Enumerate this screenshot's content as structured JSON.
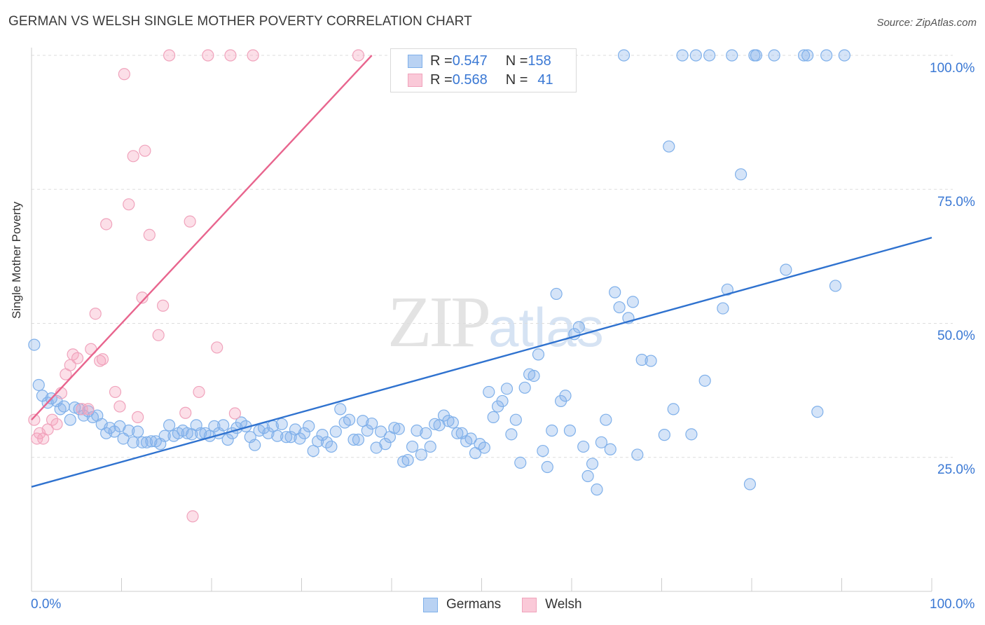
{
  "title": "GERMAN VS WELSH SINGLE MOTHER POVERTY CORRELATION CHART",
  "source": "Source: ZipAtlas.com",
  "watermark": {
    "zip": "ZIP",
    "atlas": "atlas"
  },
  "colors": {
    "german_fill": "rgba(134,177,235,0.35)",
    "german_stroke": "#7fb0ea",
    "german_line": "#2f72cf",
    "welsh_fill": "rgba(245,164,190,0.35)",
    "welsh_stroke": "#f0a3bc",
    "welsh_line": "#e8658e",
    "axis_text": "#3a78d4",
    "grid": "#dddddd"
  },
  "legend": {
    "rows": [
      {
        "r_label": "R = ",
        "r_value": "0.547",
        "n_label": "N = ",
        "n_value": "158"
      },
      {
        "r_label": "R = ",
        "r_value": "0.568",
        "n_label": "N = ",
        "n_value": "41"
      }
    ],
    "bottom": [
      "Germans",
      "Welsh"
    ]
  },
  "chart_data": {
    "type": "scatter",
    "title": "GERMAN VS WELSH SINGLE MOTHER POVERTY CORRELATION CHART",
    "xlabel": "",
    "ylabel": "Single Mother Poverty",
    "xlim": [
      0,
      100
    ],
    "ylim": [
      0,
      103
    ],
    "x_tick_labels": [
      "0.0%",
      "100.0%"
    ],
    "y_tick_labels": [
      "25.0%",
      "50.0%",
      "75.0%",
      "100.0%"
    ],
    "grid": "horizontal dashed",
    "legend_position": "top-center",
    "series": [
      {
        "name": "Germans",
        "r": 0.547,
        "n": 158,
        "trend": {
          "x": [
            0,
            100
          ],
          "y": [
            19.5,
            66.0
          ]
        },
        "points": [
          [
            0.3,
            46
          ],
          [
            0.8,
            38.5
          ],
          [
            1.2,
            36.5
          ],
          [
            1.8,
            35.2
          ],
          [
            2.2,
            36
          ],
          [
            2.8,
            35.5
          ],
          [
            3.2,
            34
          ],
          [
            3.6,
            34.5
          ],
          [
            4.3,
            32
          ],
          [
            4.8,
            34.3
          ],
          [
            5.3,
            34
          ],
          [
            5.8,
            32.8
          ],
          [
            6.3,
            33.6
          ],
          [
            6.8,
            32.5
          ],
          [
            7.3,
            32.8
          ],
          [
            7.8,
            31.2
          ],
          [
            8.3,
            29.5
          ],
          [
            8.7,
            30.5
          ],
          [
            9.2,
            29.8
          ],
          [
            9.8,
            30.8
          ],
          [
            10.2,
            28.5
          ],
          [
            10.8,
            30
          ],
          [
            11.3,
            27.8
          ],
          [
            11.8,
            29.8
          ],
          [
            12.3,
            27.8
          ],
          [
            12.8,
            27.8
          ],
          [
            13.3,
            28
          ],
          [
            13.8,
            28
          ],
          [
            14.3,
            27.5
          ],
          [
            14.8,
            29
          ],
          [
            15.3,
            31
          ],
          [
            15.8,
            29
          ],
          [
            16.3,
            29.5
          ],
          [
            16.8,
            30
          ],
          [
            17.3,
            29.5
          ],
          [
            17.8,
            29.3
          ],
          [
            18.3,
            31
          ],
          [
            18.8,
            29.5
          ],
          [
            19.3,
            29.5
          ],
          [
            19.8,
            29
          ],
          [
            20.3,
            30.8
          ],
          [
            20.8,
            29.5
          ],
          [
            21.3,
            31
          ],
          [
            21.8,
            28.3
          ],
          [
            22.3,
            29.5
          ],
          [
            22.8,
            30.5
          ],
          [
            23.3,
            31.5
          ],
          [
            23.8,
            30.8
          ],
          [
            24.3,
            28.8
          ],
          [
            24.8,
            27.3
          ],
          [
            25.3,
            30
          ],
          [
            25.8,
            30.5
          ],
          [
            26.3,
            29.5
          ],
          [
            26.8,
            30.8
          ],
          [
            27.3,
            29
          ],
          [
            27.8,
            31.2
          ],
          [
            28.3,
            28.8
          ],
          [
            28.8,
            28.8
          ],
          [
            29.3,
            30.2
          ],
          [
            29.8,
            28.5
          ],
          [
            30.3,
            29.5
          ],
          [
            30.8,
            30.8
          ],
          [
            31.3,
            26.2
          ],
          [
            31.8,
            28
          ],
          [
            32.3,
            29.2
          ],
          [
            32.8,
            27.8
          ],
          [
            33.3,
            27
          ],
          [
            33.8,
            29.8
          ],
          [
            34.3,
            34
          ],
          [
            34.8,
            31.5
          ],
          [
            35.3,
            32
          ],
          [
            35.8,
            28.3
          ],
          [
            36.3,
            28.3
          ],
          [
            36.8,
            31.8
          ],
          [
            37.3,
            30
          ],
          [
            37.8,
            31.3
          ],
          [
            38.3,
            26.8
          ],
          [
            38.8,
            29.8
          ],
          [
            39.3,
            27.5
          ],
          [
            39.8,
            28.8
          ],
          [
            40.3,
            30.5
          ],
          [
            40.8,
            30.3
          ],
          [
            41.3,
            24.2
          ],
          [
            41.8,
            24.5
          ],
          [
            42.3,
            27
          ],
          [
            42.8,
            30
          ],
          [
            43.3,
            25.5
          ],
          [
            43.8,
            29.5
          ],
          [
            44.3,
            27
          ],
          [
            44.8,
            31.2
          ],
          [
            45.3,
            31
          ],
          [
            45.8,
            32.8
          ],
          [
            46.3,
            31.8
          ],
          [
            46.8,
            31.5
          ],
          [
            47.3,
            29.5
          ],
          [
            47.8,
            29.5
          ],
          [
            48.3,
            28
          ],
          [
            48.8,
            28.5
          ],
          [
            49.3,
            25.8
          ],
          [
            49.8,
            27.5
          ],
          [
            50.3,
            26.8
          ],
          [
            50.8,
            37.2
          ],
          [
            51.3,
            32.5
          ],
          [
            51.8,
            34.5
          ],
          [
            52.3,
            35.5
          ],
          [
            52.8,
            37.8
          ],
          [
            53.3,
            29.3
          ],
          [
            53.8,
            32
          ],
          [
            54.3,
            24
          ],
          [
            54.8,
            38
          ],
          [
            55.3,
            40.5
          ],
          [
            55.8,
            40.2
          ],
          [
            56.3,
            44.2
          ],
          [
            56.8,
            26.2
          ],
          [
            57.3,
            23.2
          ],
          [
            57.8,
            30
          ],
          [
            58.3,
            55.5
          ],
          [
            58.8,
            35.5
          ],
          [
            59.3,
            36.5
          ],
          [
            59.8,
            30
          ],
          [
            60.3,
            48
          ],
          [
            60.8,
            49.3
          ],
          [
            61.3,
            27
          ],
          [
            61.8,
            21.5
          ],
          [
            62.3,
            23.8
          ],
          [
            62.8,
            19
          ],
          [
            63.3,
            27.8
          ],
          [
            63.8,
            32
          ],
          [
            64.3,
            26.5
          ],
          [
            64.8,
            55.8
          ],
          [
            65.3,
            53
          ],
          [
            65.8,
            100
          ],
          [
            66.3,
            51
          ],
          [
            66.8,
            54
          ],
          [
            67.3,
            25.5
          ],
          [
            67.8,
            43.2
          ],
          [
            68.8,
            43
          ],
          [
            70.3,
            29.2
          ],
          [
            70.8,
            83
          ],
          [
            71.3,
            34
          ],
          [
            72.3,
            100
          ],
          [
            73.3,
            29.3
          ],
          [
            73.8,
            100
          ],
          [
            74.8,
            39.3
          ],
          [
            75.3,
            100
          ],
          [
            76.8,
            52.8
          ],
          [
            77.3,
            56.3
          ],
          [
            77.8,
            100
          ],
          [
            78.8,
            77.8
          ],
          [
            79.8,
            20
          ],
          [
            80.3,
            100
          ],
          [
            80.5,
            100
          ],
          [
            82.5,
            100
          ],
          [
            83.8,
            60
          ],
          [
            85.8,
            100
          ],
          [
            86.2,
            100
          ],
          [
            87.3,
            33.5
          ],
          [
            88.3,
            100
          ],
          [
            89.3,
            57
          ],
          [
            90.3,
            100
          ]
        ]
      },
      {
        "name": "Welsh",
        "r": 0.568,
        "n": 41,
        "trend": {
          "x": [
            0,
            37.8
          ],
          "y": [
            32,
            100
          ]
        },
        "points": [
          [
            0.3,
            32
          ],
          [
            0.6,
            28.5
          ],
          [
            0.9,
            29.5
          ],
          [
            1.3,
            28.5
          ],
          [
            1.8,
            30.2
          ],
          [
            2.3,
            32
          ],
          [
            2.8,
            31.2
          ],
          [
            3.3,
            37
          ],
          [
            3.8,
            40.5
          ],
          [
            4.3,
            42.2
          ],
          [
            4.6,
            44.2
          ],
          [
            5.1,
            43.5
          ],
          [
            5.6,
            34
          ],
          [
            6.3,
            34
          ],
          [
            6.6,
            45.2
          ],
          [
            7.1,
            51.8
          ],
          [
            7.6,
            43
          ],
          [
            7.9,
            43.3
          ],
          [
            8.3,
            68.5
          ],
          [
            9.3,
            37.2
          ],
          [
            9.8,
            34.5
          ],
          [
            10.3,
            96.5
          ],
          [
            10.8,
            72.2
          ],
          [
            11.3,
            81.2
          ],
          [
            11.8,
            32.5
          ],
          [
            12.3,
            54.8
          ],
          [
            12.6,
            82.2
          ],
          [
            13.1,
            66.5
          ],
          [
            14.1,
            47.8
          ],
          [
            14.6,
            53.3
          ],
          [
            15.3,
            100
          ],
          [
            17.1,
            33.3
          ],
          [
            17.6,
            69
          ],
          [
            17.9,
            14
          ],
          [
            18.6,
            37.2
          ],
          [
            19.6,
            100
          ],
          [
            20.6,
            45.5
          ],
          [
            22.1,
            100
          ],
          [
            22.6,
            33.2
          ],
          [
            24.6,
            100
          ],
          [
            36.3,
            100
          ]
        ]
      }
    ]
  }
}
